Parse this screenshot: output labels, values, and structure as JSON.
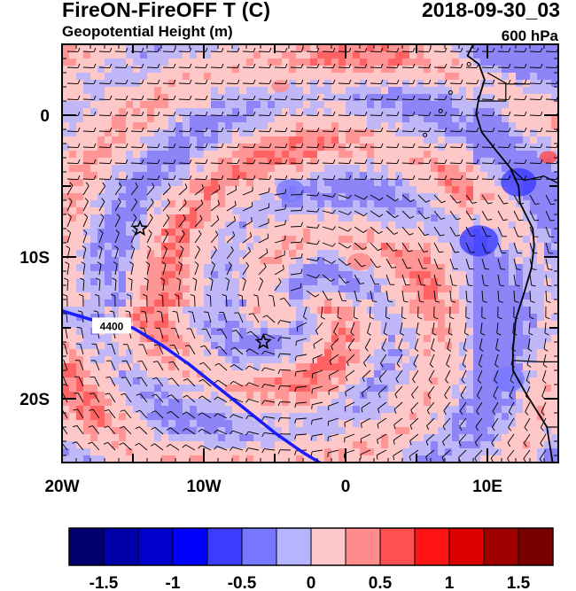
{
  "header": {
    "title": "FireON-FireOFF T (C)",
    "subtitle": "Geopotential Height (m)",
    "date": "2018-09-30_03",
    "level": "600 hPa"
  },
  "map": {
    "lon_labels": [
      {
        "lon": -20,
        "text": "20W"
      },
      {
        "lon": -10,
        "text": "10W"
      },
      {
        "lon": 0,
        "text": "0"
      },
      {
        "lon": 10,
        "text": "10E"
      }
    ],
    "lat_labels": [
      {
        "lat": 0,
        "text": "0"
      },
      {
        "lat": -10,
        "text": "10S"
      },
      {
        "lat": -20,
        "text": "20S"
      }
    ],
    "lon_range": [
      -20,
      15
    ],
    "lat_range": [
      -24.5,
      5
    ],
    "contour": {
      "value": 4400,
      "label": "4400",
      "color": "#1a1aff"
    },
    "markers": [
      {
        "name": "star",
        "lon": -14.5,
        "lat": -8
      },
      {
        "name": "star",
        "lon": -5.8,
        "lat": -16
      }
    ]
  },
  "colorbar": {
    "colors": [
      "#00006e",
      "#0000a8",
      "#0000cd",
      "#0000ff",
      "#3c3cff",
      "#7878ff",
      "#b4b4ff",
      "#ffc8c8",
      "#ff8c8c",
      "#ff5050",
      "#ff1414",
      "#dc0000",
      "#a00000",
      "#780000"
    ],
    "labels": [
      "-1.5",
      "-1",
      "-0.5",
      "0",
      "0.5",
      "1",
      "1.5"
    ],
    "label_positions": [
      1,
      3,
      5,
      7,
      9,
      11,
      13
    ]
  }
}
